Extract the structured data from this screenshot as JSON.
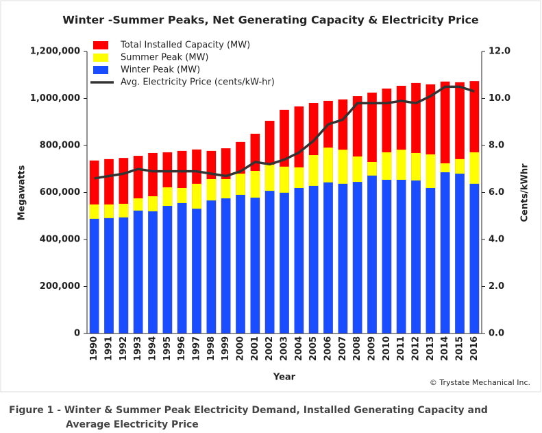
{
  "chart_data": {
    "type": "bar",
    "title": "Winter -Summer Peaks, Net Generating Capacity & Electricity Price",
    "x_label": "Year",
    "y_label": "Megawatts",
    "y2_label": "Cents/kWhr",
    "credit": "© Trystate Mechanical Inc.",
    "caption": [
      "Figure 1 - Winter & Summer Peak Electricity Demand, Installed Generating Capacity and",
      "Average Electricity Price"
    ],
    "categories": [
      "1990",
      "1991",
      "1992",
      "1993",
      "1994",
      "1995",
      "1996",
      "1997",
      "1998",
      "1999",
      "2000",
      "2001",
      "2002",
      "2003",
      "2004",
      "2005",
      "2006",
      "2007",
      "2008",
      "2009",
      "2010",
      "2011",
      "2012",
      "2013",
      "2014",
      "2015",
      "2016"
    ],
    "series": [
      {
        "name": "Total Installed Capacity (MW)",
        "color": "#ff0000",
        "values": [
          736000,
          742000,
          747000,
          756000,
          768000,
          771000,
          777000,
          783000,
          777000,
          788000,
          815000,
          850000,
          905000,
          952000,
          966000,
          981000,
          990000,
          996000,
          1010000,
          1025000,
          1042000,
          1054000,
          1066000,
          1060000,
          1072000,
          1069000,
          1074000
        ]
      },
      {
        "name": "Summer Peak (MW)",
        "color": "#ffff00",
        "values": [
          549000,
          549000,
          552000,
          575000,
          584000,
          622000,
          619000,
          637000,
          657000,
          657000,
          680000,
          692000,
          718000,
          710000,
          707000,
          759000,
          791000,
          782000,
          753000,
          730000,
          771000,
          782000,
          768000,
          762000,
          724000,
          742000,
          771000
        ]
      },
      {
        "name": "Winter Peak (MW)",
        "color": "#1a4dff",
        "values": [
          488000,
          491000,
          494000,
          523000,
          520000,
          543000,
          555000,
          531000,
          566000,
          575000,
          590000,
          578000,
          607000,
          599000,
          619000,
          628000,
          643000,
          637000,
          645000,
          672000,
          654000,
          654000,
          651000,
          619000,
          686000,
          680000,
          637000
        ]
      },
      {
        "name": "Avg. Electricity Price (cents/kW-hr)",
        "color": "#333333",
        "type": "line",
        "axis": "y2",
        "values": [
          6.6,
          6.7,
          6.8,
          7.0,
          6.9,
          6.9,
          6.9,
          6.9,
          6.8,
          6.7,
          6.9,
          7.3,
          7.2,
          7.4,
          7.7,
          8.2,
          8.9,
          9.1,
          9.8,
          9.8,
          9.8,
          9.9,
          9.8,
          10.1,
          10.5,
          10.5,
          10.3
        ]
      }
    ],
    "ylim": [
      0,
      1200000
    ],
    "yticks": [
      0,
      {
        "value": 200000,
        "label": "200,000"
      },
      {
        "value": 400000,
        "label": "400,000"
      },
      {
        "value": 600000,
        "label": "600,000"
      },
      {
        "value": 800000,
        "label": "800,000"
      },
      {
        "value": 1000000,
        "label": "1,000,000"
      },
      {
        "value": 1200000,
        "label": "1,200,000"
      }
    ],
    "y2lim": [
      0,
      12
    ],
    "y2ticks": [
      {
        "value": 0,
        "label": "0.0"
      },
      {
        "value": 2,
        "label": "2.0"
      },
      {
        "value": 4,
        "label": "4.0"
      },
      {
        "value": 6,
        "label": "6.0"
      },
      {
        "value": 8,
        "label": "8.0"
      },
      {
        "value": 10,
        "label": "10.0"
      },
      {
        "value": 12,
        "label": "12.0"
      }
    ],
    "grid": false,
    "legend": "top-left"
  }
}
